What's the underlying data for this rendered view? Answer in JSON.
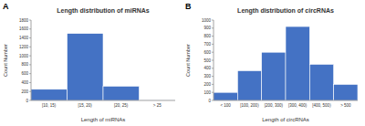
{
  "chart_data": [
    {
      "type": "bar",
      "panel_label": "A",
      "title": "Length distribution of miRNAs",
      "x_label": "Length of miRNAs",
      "y_label": "Count Number",
      "categories": [
        "[10, 15)",
        "[15, 20)",
        "[20, 25)",
        "> 25"
      ],
      "values": [
        250,
        1500,
        320,
        10
      ],
      "color": "#4472c4",
      "ylim": [
        0,
        1800
      ],
      "yticks": [
        0,
        200,
        400,
        600,
        800,
        1000,
        1200,
        1400,
        1600,
        1800
      ],
      "grid": false
    },
    {
      "type": "bar",
      "panel_label": "B",
      "title": "Length distribution of circRNAs",
      "x_label": "Length of circRNAs",
      "y_label": "Count Number",
      "categories": [
        "< 100",
        "[100, 200)",
        "[200, 300)",
        "[300, 400)",
        "[400, 500)",
        "> 500"
      ],
      "values": [
        100,
        370,
        600,
        920,
        450,
        200
      ],
      "color": "#4472c4",
      "ylim": [
        0,
        1000
      ],
      "yticks": [
        0,
        100,
        200,
        300,
        400,
        500,
        600,
        700,
        800,
        900,
        1000
      ],
      "grid": false
    }
  ]
}
